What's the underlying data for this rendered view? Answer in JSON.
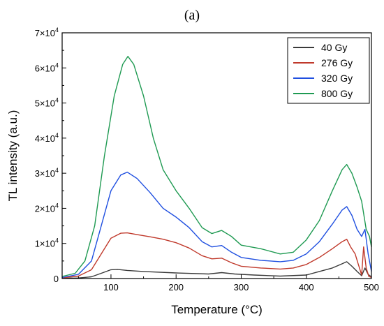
{
  "panel_label": "(a)",
  "chart_data": {
    "type": "line",
    "xlabel": "Temperature (°C)",
    "ylabel": "TL intensity (a.u.)",
    "xlim": [
      25,
      500
    ],
    "ylim": [
      0,
      70000
    ],
    "x_ticks": [
      100,
      200,
      300,
      400,
      500
    ],
    "y_ticks": [
      0,
      10000,
      20000,
      30000,
      40000,
      50000,
      60000,
      70000
    ],
    "y_tick_labels": [
      {
        "base": "0",
        "exp": ""
      },
      {
        "base": "1×10",
        "exp": "4"
      },
      {
        "base": "2×10",
        "exp": "4"
      },
      {
        "base": "3×10",
        "exp": "4"
      },
      {
        "base": "4×10",
        "exp": "4"
      },
      {
        "base": "5×10",
        "exp": "4"
      },
      {
        "base": "6×10",
        "exp": "4"
      },
      {
        "base": "7×10",
        "exp": "4"
      }
    ],
    "grid": false,
    "legend_position": "top-right",
    "series": [
      {
        "name": "40 Gy",
        "color": "#3a3a3a",
        "points": [
          [
            25,
            50
          ],
          [
            50,
            150
          ],
          [
            70,
            500
          ],
          [
            85,
            1500
          ],
          [
            100,
            2500
          ],
          [
            110,
            2600
          ],
          [
            125,
            2300
          ],
          [
            150,
            2000
          ],
          [
            200,
            1600
          ],
          [
            250,
            1300
          ],
          [
            270,
            1700
          ],
          [
            290,
            1300
          ],
          [
            320,
            1000
          ],
          [
            360,
            700
          ],
          [
            400,
            1000
          ],
          [
            420,
            2000
          ],
          [
            440,
            3000
          ],
          [
            455,
            4200
          ],
          [
            462,
            4800
          ],
          [
            470,
            3500
          ],
          [
            478,
            2000
          ],
          [
            485,
            800
          ],
          [
            490,
            3000
          ],
          [
            495,
            1200
          ],
          [
            500,
            500
          ]
        ]
      },
      {
        "name": "276 Gy",
        "color": "#c0392b",
        "points": [
          [
            25,
            200
          ],
          [
            50,
            700
          ],
          [
            70,
            2500
          ],
          [
            85,
            7000
          ],
          [
            100,
            11500
          ],
          [
            115,
            12900
          ],
          [
            125,
            13000
          ],
          [
            140,
            12500
          ],
          [
            160,
            11900
          ],
          [
            180,
            11200
          ],
          [
            200,
            10200
          ],
          [
            220,
            8700
          ],
          [
            240,
            6500
          ],
          [
            255,
            5600
          ],
          [
            270,
            5800
          ],
          [
            285,
            4500
          ],
          [
            300,
            3500
          ],
          [
            330,
            3000
          ],
          [
            360,
            2700
          ],
          [
            380,
            3000
          ],
          [
            400,
            4000
          ],
          [
            420,
            6000
          ],
          [
            440,
            8500
          ],
          [
            455,
            10500
          ],
          [
            462,
            11200
          ],
          [
            468,
            9000
          ],
          [
            475,
            7000
          ],
          [
            480,
            4000
          ],
          [
            485,
            1000
          ],
          [
            488,
            9000
          ],
          [
            492,
            3000
          ],
          [
            496,
            600
          ],
          [
            500,
            300
          ]
        ]
      },
      {
        "name": "320 Gy",
        "color": "#1f4fe0",
        "points": [
          [
            25,
            300
          ],
          [
            50,
            1200
          ],
          [
            70,
            5000
          ],
          [
            85,
            15000
          ],
          [
            100,
            25000
          ],
          [
            115,
            29500
          ],
          [
            125,
            30300
          ],
          [
            140,
            28500
          ],
          [
            160,
            24500
          ],
          [
            180,
            20000
          ],
          [
            200,
            17500
          ],
          [
            220,
            14500
          ],
          [
            240,
            10500
          ],
          [
            255,
            9000
          ],
          [
            270,
            9400
          ],
          [
            285,
            7500
          ],
          [
            300,
            6000
          ],
          [
            330,
            5200
          ],
          [
            360,
            4800
          ],
          [
            380,
            5200
          ],
          [
            400,
            7000
          ],
          [
            420,
            10500
          ],
          [
            440,
            15500
          ],
          [
            455,
            19500
          ],
          [
            462,
            20500
          ],
          [
            470,
            18000
          ],
          [
            478,
            14000
          ],
          [
            485,
            12000
          ],
          [
            490,
            14000
          ],
          [
            495,
            7000
          ],
          [
            500,
            2000
          ]
        ]
      },
      {
        "name": "800 Gy",
        "color": "#1f9a52",
        "points": [
          [
            25,
            600
          ],
          [
            45,
            1500
          ],
          [
            60,
            5000
          ],
          [
            75,
            15000
          ],
          [
            90,
            35000
          ],
          [
            105,
            52000
          ],
          [
            118,
            61000
          ],
          [
            126,
            63300
          ],
          [
            135,
            61000
          ],
          [
            150,
            52000
          ],
          [
            165,
            40000
          ],
          [
            180,
            31000
          ],
          [
            200,
            25000
          ],
          [
            220,
            20000
          ],
          [
            240,
            14500
          ],
          [
            255,
            12800
          ],
          [
            270,
            13700
          ],
          [
            285,
            12000
          ],
          [
            300,
            9500
          ],
          [
            330,
            8500
          ],
          [
            360,
            7000
          ],
          [
            380,
            7500
          ],
          [
            400,
            11000
          ],
          [
            420,
            16500
          ],
          [
            440,
            25000
          ],
          [
            455,
            31000
          ],
          [
            462,
            32500
          ],
          [
            470,
            30000
          ],
          [
            478,
            26000
          ],
          [
            485,
            22000
          ],
          [
            492,
            14000
          ],
          [
            497,
            12000
          ],
          [
            500,
            9000
          ]
        ]
      }
    ]
  }
}
